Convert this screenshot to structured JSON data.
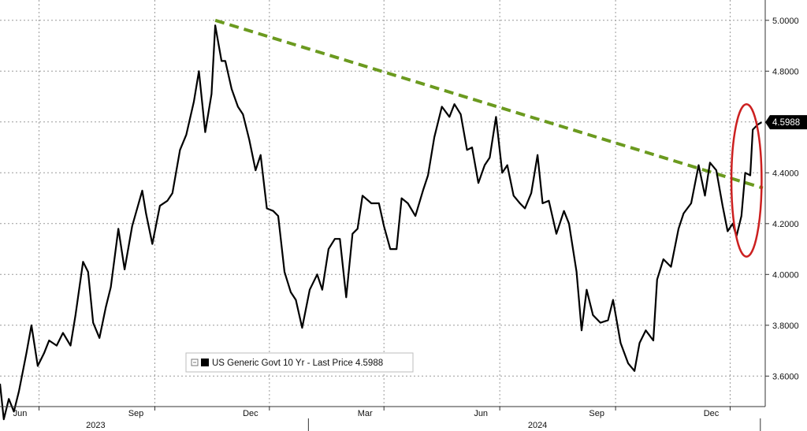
{
  "chart_data": {
    "type": "line",
    "title": "",
    "xlabel": "",
    "ylabel": "",
    "ylim": [
      3.48,
      5.08
    ],
    "y_ticks": [
      "3.6000",
      "3.8000",
      "4.0000",
      "4.2000",
      "4.4000",
      "4.6000",
      "4.8000",
      "5.0000"
    ],
    "x_ticks": [
      {
        "label": "Jun",
        "date": "2023-06-01"
      },
      {
        "label": "Sep",
        "date": "2023-09-01"
      },
      {
        "label": "Dec",
        "date": "2023-12-01"
      },
      {
        "label": "Mar",
        "date": "2024-03-01"
      },
      {
        "label": "Jun",
        "date": "2024-06-01"
      },
      {
        "label": "Sep",
        "date": "2024-09-01"
      },
      {
        "label": "Dec",
        "date": "2024-12-01"
      }
    ],
    "years": [
      {
        "label": "2023",
        "date": "2023-07-16"
      },
      {
        "label": "2024",
        "date": "2024-07-01"
      }
    ],
    "xlim": [
      "2023-05-01",
      "2024-12-27"
    ],
    "grid": true,
    "legend": {
      "placement": "bottom-center",
      "label": "US Generic Govt 10 Yr - Last Price 4.5988"
    },
    "last_value_label": "4.5988",
    "series": [
      {
        "name": "US Generic Govt 10 Yr - Last Price 4.5988",
        "color": "#000000",
        "points": [
          [
            "2023-05-01",
            3.57
          ],
          [
            "2023-05-04",
            3.43
          ],
          [
            "2023-05-08",
            3.51
          ],
          [
            "2023-05-12",
            3.46
          ],
          [
            "2023-05-16",
            3.54
          ],
          [
            "2023-05-22",
            3.69
          ],
          [
            "2023-05-26",
            3.8
          ],
          [
            "2023-05-31",
            3.64
          ],
          [
            "2023-06-05",
            3.69
          ],
          [
            "2023-06-09",
            3.74
          ],
          [
            "2023-06-15",
            3.72
          ],
          [
            "2023-06-20",
            3.77
          ],
          [
            "2023-06-26",
            3.72
          ],
          [
            "2023-06-30",
            3.84
          ],
          [
            "2023-07-06",
            4.05
          ],
          [
            "2023-07-10",
            4.01
          ],
          [
            "2023-07-14",
            3.81
          ],
          [
            "2023-07-19",
            3.75
          ],
          [
            "2023-07-24",
            3.87
          ],
          [
            "2023-07-28",
            3.95
          ],
          [
            "2023-08-03",
            4.18
          ],
          [
            "2023-08-08",
            4.02
          ],
          [
            "2023-08-14",
            4.19
          ],
          [
            "2023-08-18",
            4.26
          ],
          [
            "2023-08-22",
            4.33
          ],
          [
            "2023-08-25",
            4.24
          ],
          [
            "2023-08-30",
            4.12
          ],
          [
            "2023-09-05",
            4.27
          ],
          [
            "2023-09-11",
            4.29
          ],
          [
            "2023-09-15",
            4.32
          ],
          [
            "2023-09-21",
            4.49
          ],
          [
            "2023-09-26",
            4.55
          ],
          [
            "2023-10-02",
            4.68
          ],
          [
            "2023-10-06",
            4.8
          ],
          [
            "2023-10-11",
            4.56
          ],
          [
            "2023-10-16",
            4.71
          ],
          [
            "2023-10-19",
            4.98
          ],
          [
            "2023-10-24",
            4.84
          ],
          [
            "2023-10-27",
            4.84
          ],
          [
            "2023-11-01",
            4.73
          ],
          [
            "2023-11-06",
            4.66
          ],
          [
            "2023-11-10",
            4.63
          ],
          [
            "2023-11-15",
            4.53
          ],
          [
            "2023-11-20",
            4.41
          ],
          [
            "2023-11-24",
            4.47
          ],
          [
            "2023-11-29",
            4.26
          ],
          [
            "2023-12-04",
            4.25
          ],
          [
            "2023-12-08",
            4.23
          ],
          [
            "2023-12-13",
            4.01
          ],
          [
            "2023-12-18",
            3.93
          ],
          [
            "2023-12-22",
            3.9
          ],
          [
            "2023-12-27",
            3.79
          ],
          [
            "2024-01-02",
            3.94
          ],
          [
            "2024-01-08",
            4.0
          ],
          [
            "2024-01-12",
            3.94
          ],
          [
            "2024-01-17",
            4.1
          ],
          [
            "2024-01-22",
            4.14
          ],
          [
            "2024-01-26",
            4.14
          ],
          [
            "2024-01-31",
            3.91
          ],
          [
            "2024-02-05",
            4.16
          ],
          [
            "2024-02-09",
            4.18
          ],
          [
            "2024-02-13",
            4.31
          ],
          [
            "2024-02-20",
            4.28
          ],
          [
            "2024-02-26",
            4.28
          ],
          [
            "2024-03-01",
            4.19
          ],
          [
            "2024-03-06",
            4.1
          ],
          [
            "2024-03-11",
            4.1
          ],
          [
            "2024-03-15",
            4.3
          ],
          [
            "2024-03-20",
            4.28
          ],
          [
            "2024-03-26",
            4.23
          ],
          [
            "2024-04-01",
            4.33
          ],
          [
            "2024-04-05",
            4.39
          ],
          [
            "2024-04-10",
            4.54
          ],
          [
            "2024-04-16",
            4.66
          ],
          [
            "2024-04-22",
            4.62
          ],
          [
            "2024-04-26",
            4.67
          ],
          [
            "2024-05-01",
            4.63
          ],
          [
            "2024-05-06",
            4.49
          ],
          [
            "2024-05-10",
            4.5
          ],
          [
            "2024-05-15",
            4.36
          ],
          [
            "2024-05-20",
            4.43
          ],
          [
            "2024-05-24",
            4.46
          ],
          [
            "2024-05-29",
            4.62
          ],
          [
            "2024-06-03",
            4.4
          ],
          [
            "2024-06-07",
            4.43
          ],
          [
            "2024-06-12",
            4.31
          ],
          [
            "2024-06-17",
            4.28
          ],
          [
            "2024-06-21",
            4.26
          ],
          [
            "2024-06-26",
            4.32
          ],
          [
            "2024-07-01",
            4.47
          ],
          [
            "2024-07-05",
            4.28
          ],
          [
            "2024-07-10",
            4.29
          ],
          [
            "2024-07-16",
            4.16
          ],
          [
            "2024-07-22",
            4.25
          ],
          [
            "2024-07-26",
            4.2
          ],
          [
            "2024-08-01",
            4.01
          ],
          [
            "2024-08-05",
            3.78
          ],
          [
            "2024-08-09",
            3.94
          ],
          [
            "2024-08-14",
            3.84
          ],
          [
            "2024-08-20",
            3.81
          ],
          [
            "2024-08-26",
            3.82
          ],
          [
            "2024-08-30",
            3.9
          ],
          [
            "2024-09-05",
            3.73
          ],
          [
            "2024-09-11",
            3.65
          ],
          [
            "2024-09-16",
            3.62
          ],
          [
            "2024-09-20",
            3.73
          ],
          [
            "2024-09-25",
            3.78
          ],
          [
            "2024-10-01",
            3.74
          ],
          [
            "2024-10-04",
            3.98
          ],
          [
            "2024-10-09",
            4.06
          ],
          [
            "2024-10-15",
            4.03
          ],
          [
            "2024-10-21",
            4.18
          ],
          [
            "2024-10-25",
            4.24
          ],
          [
            "2024-10-31",
            4.28
          ],
          [
            "2024-11-06",
            4.43
          ],
          [
            "2024-11-11",
            4.31
          ],
          [
            "2024-11-15",
            4.44
          ],
          [
            "2024-11-20",
            4.41
          ],
          [
            "2024-11-25",
            4.27
          ],
          [
            "2024-11-29",
            4.17
          ],
          [
            "2024-12-03",
            4.2
          ],
          [
            "2024-12-06",
            4.15
          ],
          [
            "2024-12-10",
            4.23
          ],
          [
            "2024-12-13",
            4.4
          ],
          [
            "2024-12-17",
            4.39
          ],
          [
            "2024-12-19",
            4.57
          ],
          [
            "2024-12-23",
            4.59
          ],
          [
            "2024-12-26",
            4.5988
          ]
        ]
      }
    ],
    "annotations": [
      {
        "type": "dashed-trendline",
        "color": "#6b9a1f",
        "from": [
          "2023-10-19",
          5.0
        ],
        "to": [
          "2024-12-27",
          4.34
        ]
      },
      {
        "type": "ellipse",
        "color": "#cc2020",
        "center": [
          "2024-12-14",
          4.37
        ],
        "rx_days": 12,
        "ry_value": 0.3
      }
    ]
  }
}
